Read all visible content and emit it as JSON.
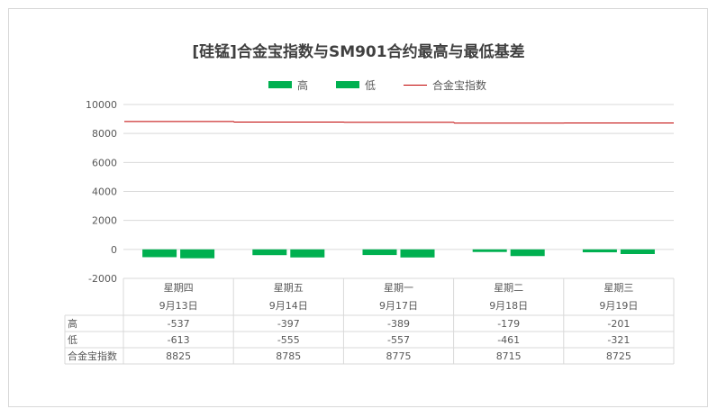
{
  "chart_data": {
    "type": "bar",
    "title": "[硅锰]合金宝指数与SM901合约最高与最低基差",
    "categories": [
      "星期四",
      "星期五",
      "星期一",
      "星期二",
      "星期三"
    ],
    "dates": [
      "9月13日",
      "9月14日",
      "9月17日",
      "9月18日",
      "9月19日"
    ],
    "series": [
      {
        "name": "高",
        "type": "bar",
        "values": [
          -537,
          -397,
          -389,
          -179,
          -201
        ],
        "color": "#00b050"
      },
      {
        "name": "低",
        "type": "bar",
        "values": [
          -613,
          -555,
          -557,
          -461,
          -321
        ],
        "color": "#00b050"
      },
      {
        "name": "合金宝指数",
        "type": "line",
        "values": [
          8825,
          8785,
          8775,
          8715,
          8725
        ],
        "color": "#c00000"
      }
    ],
    "yticks": [
      "10000",
      "8000",
      "6000",
      "4000",
      "2000",
      "0",
      "-2000"
    ],
    "ylim": [
      -2000,
      10000
    ],
    "grid": true,
    "legend": "top"
  }
}
